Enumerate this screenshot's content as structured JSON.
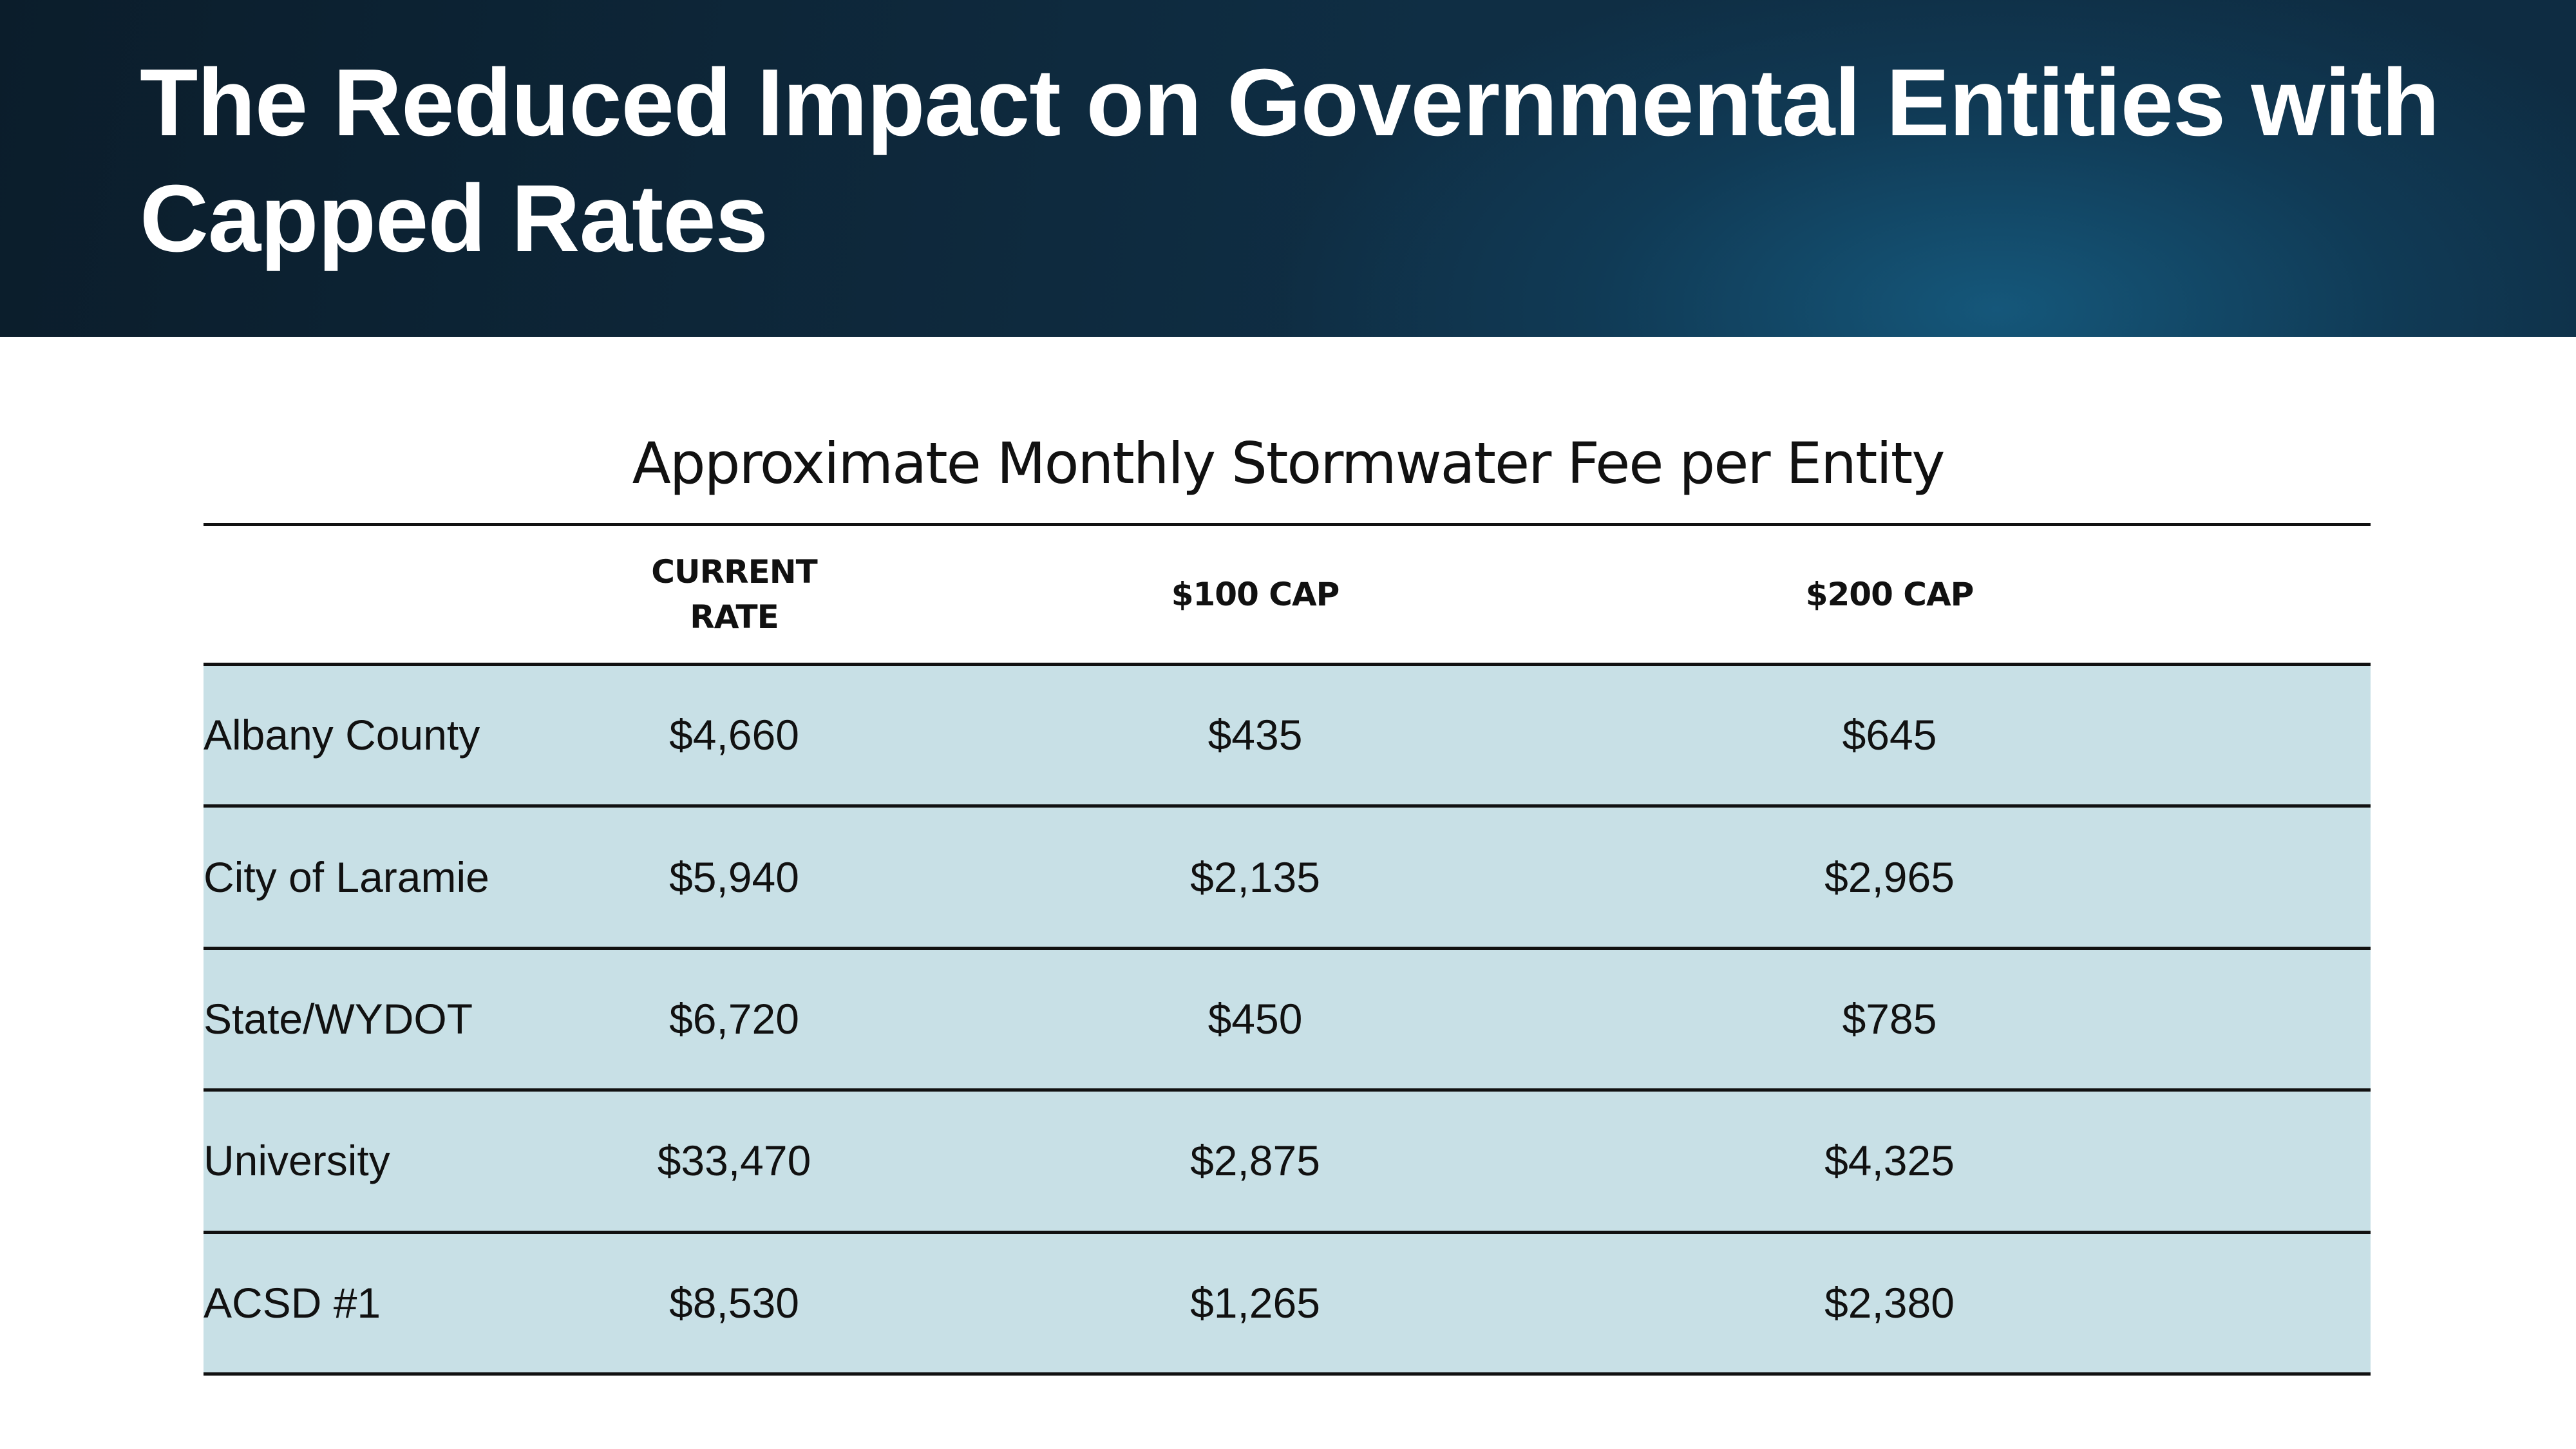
{
  "header": {
    "title": "The Reduced Impact on Governmental Entities with Capped Rates"
  },
  "table": {
    "caption": "Approximate Monthly Stormwater Fee per Entity",
    "columns": [
      "CURRENT RATE",
      "$100 CAP",
      "$200 CAP"
    ],
    "rows": [
      [
        "Albany County",
        "$4,660",
        "$435",
        "$645"
      ],
      [
        "City of Laramie",
        "$5,940",
        "$2,135",
        "$2,965"
      ],
      [
        "State/WYDOT",
        "$6,720",
        "$450",
        "$785"
      ],
      [
        "University",
        "$33,470",
        "$2,875",
        "$4,325"
      ],
      [
        "ACSD #1",
        "$8,530",
        "$1,265",
        "$2,380"
      ]
    ]
  }
}
